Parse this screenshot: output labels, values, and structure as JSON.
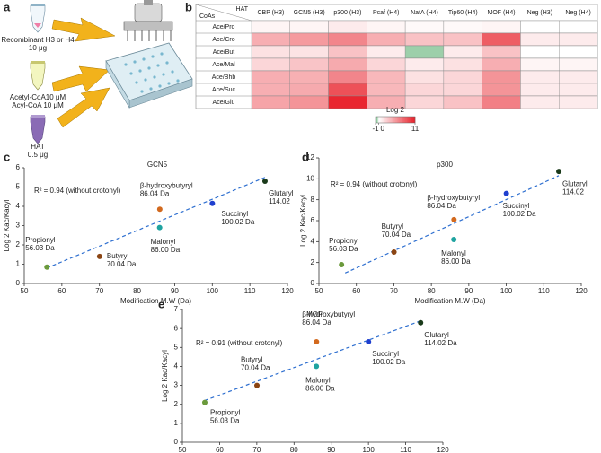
{
  "panel_labels": [
    "a",
    "b",
    "c",
    "d",
    "e"
  ],
  "panel_a": {
    "tube1": [
      "Recombinant H3 or H4",
      "10 μg"
    ],
    "tube2": [
      "Acetyl-CoA10 μM",
      "Acyl-CoA 10 μM"
    ],
    "tube3": [
      "HAT",
      "0.5 μg"
    ]
  },
  "chart_data": [
    {
      "type": "heatmap",
      "corner_top": "HAT",
      "corner_bottom": "CoAs",
      "columns": [
        "CBP (H3)",
        "GCN5 (H3)",
        "p300 (H3)",
        "Pcaf (H4)",
        "NatA (H4)",
        "Tip60 (H4)",
        "MOF (H4)",
        "Neg (H3)",
        "Neg (H4)"
      ],
      "rows": [
        "Ace/Pro",
        "Ace/Cro",
        "Ace/But",
        "Ace/Mal",
        "Ace/Bhb",
        "Ace/Suc",
        "Ace/Glu"
      ],
      "values": [
        [
          0.5,
          0.5,
          1,
          0.5,
          0.3,
          0.3,
          0.5,
          0,
          0
        ],
        [
          4,
          5,
          6,
          4,
          3,
          3,
          8,
          1,
          1
        ],
        [
          1.5,
          1.4,
          3,
          1,
          -0.5,
          1,
          3,
          0,
          0
        ],
        [
          2,
          2.9,
          4.2,
          2,
          1,
          1.5,
          4,
          0.5,
          0.5
        ],
        [
          4,
          3.9,
          6,
          3.5,
          1.5,
          2,
          5.3,
          1,
          1
        ],
        [
          4,
          4.2,
          8.6,
          3.5,
          2,
          2,
          5.3,
          1,
          1
        ],
        [
          4.5,
          5.3,
          10.7,
          4,
          2,
          3,
          6.3,
          1,
          1
        ]
      ],
      "zlim": [
        -1,
        11
      ],
      "low_color": "#3a9e55",
      "mid_color": "#ffffff",
      "high_color": "#e8202a",
      "colorbar_label": "Log 2",
      "colorbar_ticks": [
        -1,
        0,
        11
      ]
    },
    {
      "type": "scatter",
      "title": "GCN5",
      "xlabel": "Modification M.W (Da)",
      "ylabel": "Log 2 Kac/Kacyl",
      "annotation": "R² = 0.94 (without crotonyl)",
      "x": [
        56.03,
        70.04,
        86.04,
        86.0,
        100.02,
        114.02
      ],
      "y": [
        0.85,
        1.4,
        3.85,
        2.9,
        4.15,
        5.3
      ],
      "colors": [
        "#6b9a3c",
        "#8b4513",
        "#d2691e",
        "#1fa3a0",
        "#1f3fcf",
        "#1a3a1a"
      ],
      "point_labels": [
        [
          "Propionyl",
          "56.03 Da"
        ],
        [
          "Butyryl",
          "70.04 Da"
        ],
        [
          "β-hydroxybutyryl",
          "86.04 Da"
        ],
        [
          "Malonyl",
          "86.00 Da"
        ],
        [
          "Succinyl",
          "100.02 Da"
        ],
        [
          "Glutaryl",
          "114.02"
        ]
      ],
      "fit": {
        "x": [
          56,
          114
        ],
        "y": [
          0.8,
          5.5
        ]
      },
      "fit_color": "#2e6fd0",
      "xlim": [
        50,
        120
      ],
      "xticks": [
        50,
        60,
        70,
        80,
        90,
        100,
        110,
        120
      ],
      "ylim": [
        0,
        6
      ],
      "yticks": [
        0,
        1,
        2,
        3,
        4,
        5,
        6
      ]
    },
    {
      "type": "scatter",
      "title": "p300",
      "xlabel": "Modification M.W (Da)",
      "ylabel": "Log 2 Kac/Kacyl",
      "annotation": "R² = 0.94 (without crotonyl)",
      "x": [
        56.03,
        70.04,
        86.04,
        86.0,
        100.02,
        114.02
      ],
      "y": [
        1.8,
        3.0,
        6.1,
        4.2,
        8.6,
        10.7
      ],
      "colors": [
        "#6b9a3c",
        "#8b4513",
        "#d2691e",
        "#1fa3a0",
        "#1f3fcf",
        "#1a3a1a"
      ],
      "point_labels": [
        [
          "Propionyl",
          "56.03 Da"
        ],
        [
          "Butyryl",
          "70.04 Da"
        ],
        [
          "β-hydroxybutyryl",
          "86.04 Da"
        ],
        [
          "Malonyl",
          "86.00 Da"
        ],
        [
          "Succinyl",
          "100.02 Da"
        ],
        [
          "Glutaryl",
          "114.02"
        ]
      ],
      "fit": {
        "x": [
          57,
          114
        ],
        "y": [
          1,
          10.3
        ]
      },
      "fit_color": "#2e6fd0",
      "xlim": [
        50,
        120
      ],
      "xticks": [
        50,
        60,
        70,
        80,
        90,
        100,
        110,
        120
      ],
      "ylim": [
        0,
        12
      ],
      "yticks": [
        0,
        2,
        4,
        6,
        8,
        10,
        12
      ]
    },
    {
      "type": "scatter",
      "title": "MOF",
      "xlabel": "Modification M.W (Da)",
      "ylabel": "Log 2 Kac/Kacyl",
      "annotation": "R² = 0.91 (without crotonyl)",
      "x": [
        56.03,
        70.04,
        86.04,
        86.0,
        100.02,
        114.02
      ],
      "y": [
        2.1,
        3.0,
        5.3,
        4.0,
        5.3,
        6.3
      ],
      "colors": [
        "#6b9a3c",
        "#8b4513",
        "#d2691e",
        "#1fa3a0",
        "#1f3fcf",
        "#1a3a1a"
      ],
      "point_labels": [
        [
          "Propionyl",
          "56.03 Da"
        ],
        [
          "Butyryl",
          "70.04 Da"
        ],
        [
          "β-hydroxybutyryl",
          "86.04 Da"
        ],
        [
          "Malonyl",
          "86.00 Da"
        ],
        [
          "Succinyl",
          "100.02 Da"
        ],
        [
          "Glutaryl",
          "114.02 Da"
        ]
      ],
      "fit": {
        "x": [
          56,
          114
        ],
        "y": [
          2.2,
          6.4
        ]
      },
      "fit_color": "#2e6fd0",
      "xlim": [
        50,
        120
      ],
      "xticks": [
        50,
        60,
        70,
        80,
        90,
        100,
        110,
        120
      ],
      "ylim": [
        0,
        7
      ],
      "yticks": [
        0,
        1,
        2,
        3,
        4,
        5,
        6,
        7
      ]
    }
  ]
}
